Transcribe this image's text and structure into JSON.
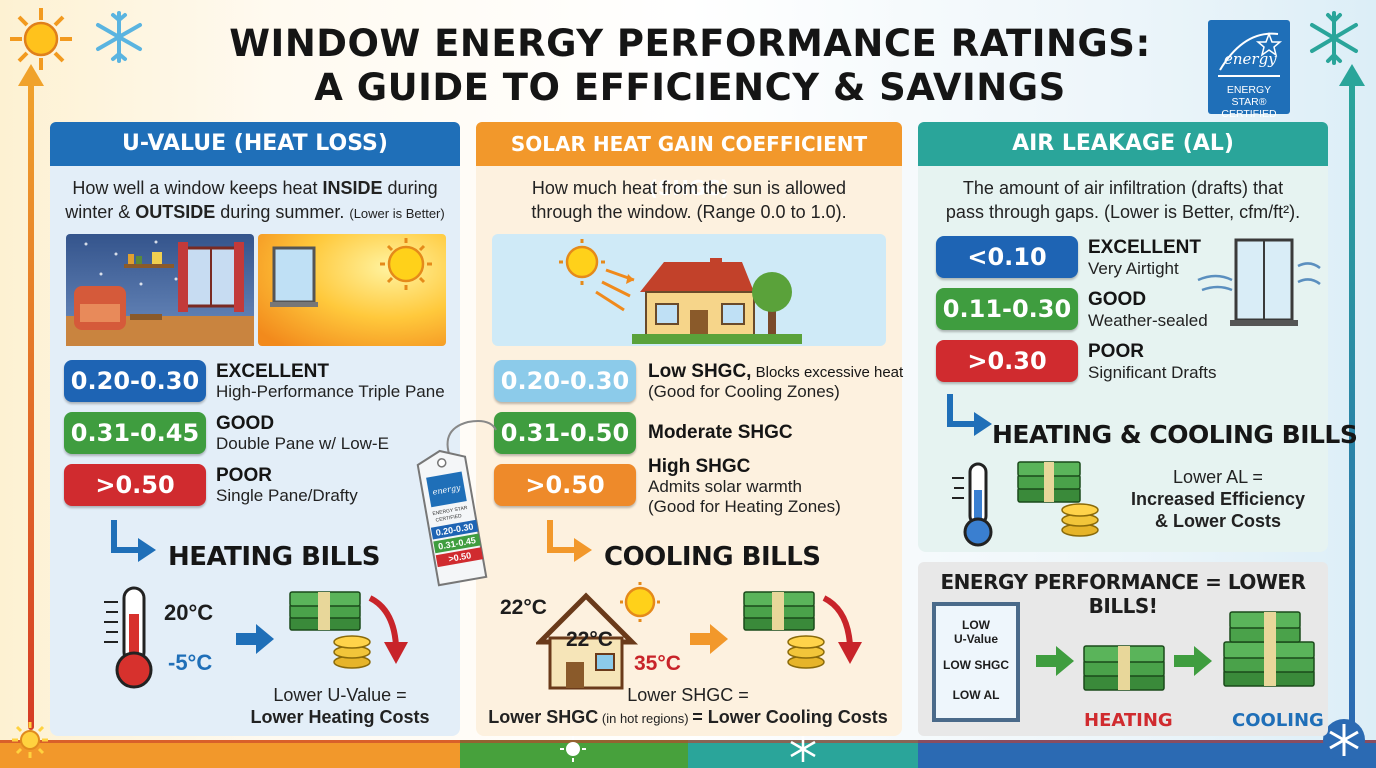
{
  "title": {
    "line1": "WINDOW ENERGY PERFORMANCE RATINGS:",
    "line2": "A GUIDE TO EFFICIENCY & SAVINGS"
  },
  "badge": {
    "logo_text": "energy",
    "caption_line1": "ENERGY STAR®",
    "caption_line2": "CERTIFIED"
  },
  "colors": {
    "blue": "#1f6fb8",
    "orange": "#f2982b",
    "teal": "#2aa59a",
    "excellent": "#1e64b4",
    "good": "#3f9d3f",
    "poor": "#d02b2f",
    "light_blue": "#8ccbea",
    "shgc_high": "#ee8a2a"
  },
  "uvalue": {
    "header": "U-VALUE (HEAT LOSS)",
    "desc_a": "How well a window keeps heat ",
    "desc_b": "INSIDE",
    "desc_c": " during",
    "desc_d": "winter & ",
    "desc_e": "OUTSIDE",
    "desc_f": " during summer. ",
    "desc_g": "(Lower is Better)",
    "ratings": [
      {
        "range": "0.20-0.30",
        "label": "EXCELLENT",
        "detail": "High-Performance Triple Pane"
      },
      {
        "range": "0.31-0.45",
        "label": "GOOD",
        "detail": "Double Pane w/ Low-E"
      },
      {
        "range": ">0.50",
        "label": "POOR",
        "detail": "Single Pane/Drafty"
      }
    ],
    "bills_title": "HEATING BILLS",
    "temp_in": "20°C",
    "temp_out": "-5°C",
    "caption_a": "Lower U-Value =",
    "caption_b": "Lower Heating Costs"
  },
  "tag": {
    "logo_text": "energy",
    "line1": "ENERGY STAR",
    "line2": "CERTIFIED",
    "r1": "0.20-0.30",
    "r2": "0.31-0.45",
    "r3": ">0.50"
  },
  "shgc": {
    "header": "SOLAR HEAT GAIN COEFFICIENT (SHGC)",
    "desc_a": "How much heat from the sun is allowed",
    "desc_b": "through the window. (Range 0.0 to 1.0).",
    "ratings": [
      {
        "range": "0.20-0.30",
        "label": "Low SHGC,",
        "label_small": " Blocks excessive heat",
        "detail": "(Good for Cooling Zones)"
      },
      {
        "range": "0.31-0.50",
        "label": "Moderate SHGC",
        "label_small": "",
        "detail": ""
      },
      {
        "range": ">0.50",
        "label": "High SHGC",
        "label_small": "",
        "detail": "Admits solar warmth",
        "detail2": "(Good for Heating Zones)"
      }
    ],
    "bills_title": "COOLING BILLS",
    "temp_outside_left": "22°C",
    "temp_inside": "22°C",
    "temp_hot": "35°C",
    "caption_a": "Lower SHGC =",
    "caption_b": "Lower SHGC",
    "caption_c": " (in hot regions) ",
    "caption_d": "= Lower Cooling Costs"
  },
  "air": {
    "header": "AIR LEAKAGE (AL)",
    "desc_a": "The amount of air infiltration (drafts) that",
    "desc_b": "pass through gaps. (Lower is Better, cfm/ft²).",
    "ratings": [
      {
        "range": "<0.10",
        "label": "EXCELLENT",
        "detail": "Very Airtight"
      },
      {
        "range": "0.11-0.30",
        "label": "GOOD",
        "detail": "Weather-sealed"
      },
      {
        "range": ">0.30",
        "label": "POOR",
        "detail": "Significant Drafts"
      }
    ],
    "bills_title": "HEATING & COOLING BILLS",
    "caption_a": "Lower AL =",
    "caption_b": "Increased Efficiency",
    "caption_c": "& Lower Costs"
  },
  "summary": {
    "title": "ENERGY PERFORMANCE = LOWER BILLS!",
    "window_l1": "LOW",
    "window_l2": "U-Value",
    "window_l3": "LOW SHGC",
    "window_l4": "LOW AL",
    "heating": "HEATING",
    "cooling": "COOLING"
  }
}
